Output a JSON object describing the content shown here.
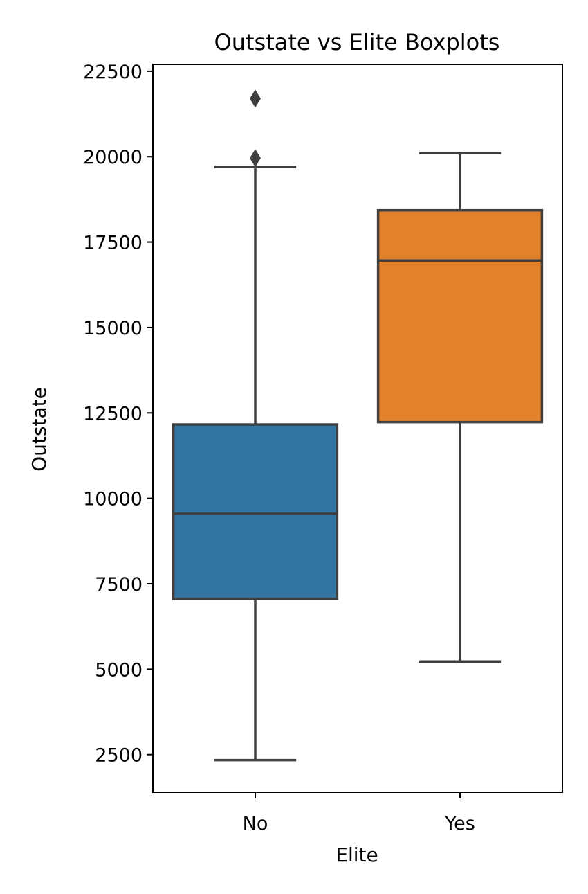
{
  "chart_data": {
    "type": "box",
    "title": "Outstate vs Elite Boxplots",
    "xlabel": "Elite",
    "ylabel": "Outstate",
    "categories": [
      "No",
      "Yes"
    ],
    "ylim": [
      1400,
      22700
    ],
    "yticks": [
      2500,
      5000,
      7500,
      10000,
      12500,
      15000,
      17500,
      20000,
      22500
    ],
    "ytick_labels": [
      "2500",
      "5000",
      "7500",
      "10000",
      "12500",
      "15000",
      "17500",
      "20000",
      "22500"
    ],
    "grid": false,
    "legend": "none",
    "boxes": [
      {
        "category": "No",
        "color": "#3274a1",
        "whisker_low": 2340,
        "q1": 7060,
        "median": 9550,
        "q3": 12160,
        "whisker_high": 19700,
        "outliers": [
          19960,
          21700
        ]
      },
      {
        "category": "Yes",
        "color": "#e1812c",
        "whisker_low": 5225,
        "q1": 12230,
        "median": 16960,
        "q3": 18430,
        "whisker_high": 20100,
        "outliers": []
      }
    ]
  }
}
